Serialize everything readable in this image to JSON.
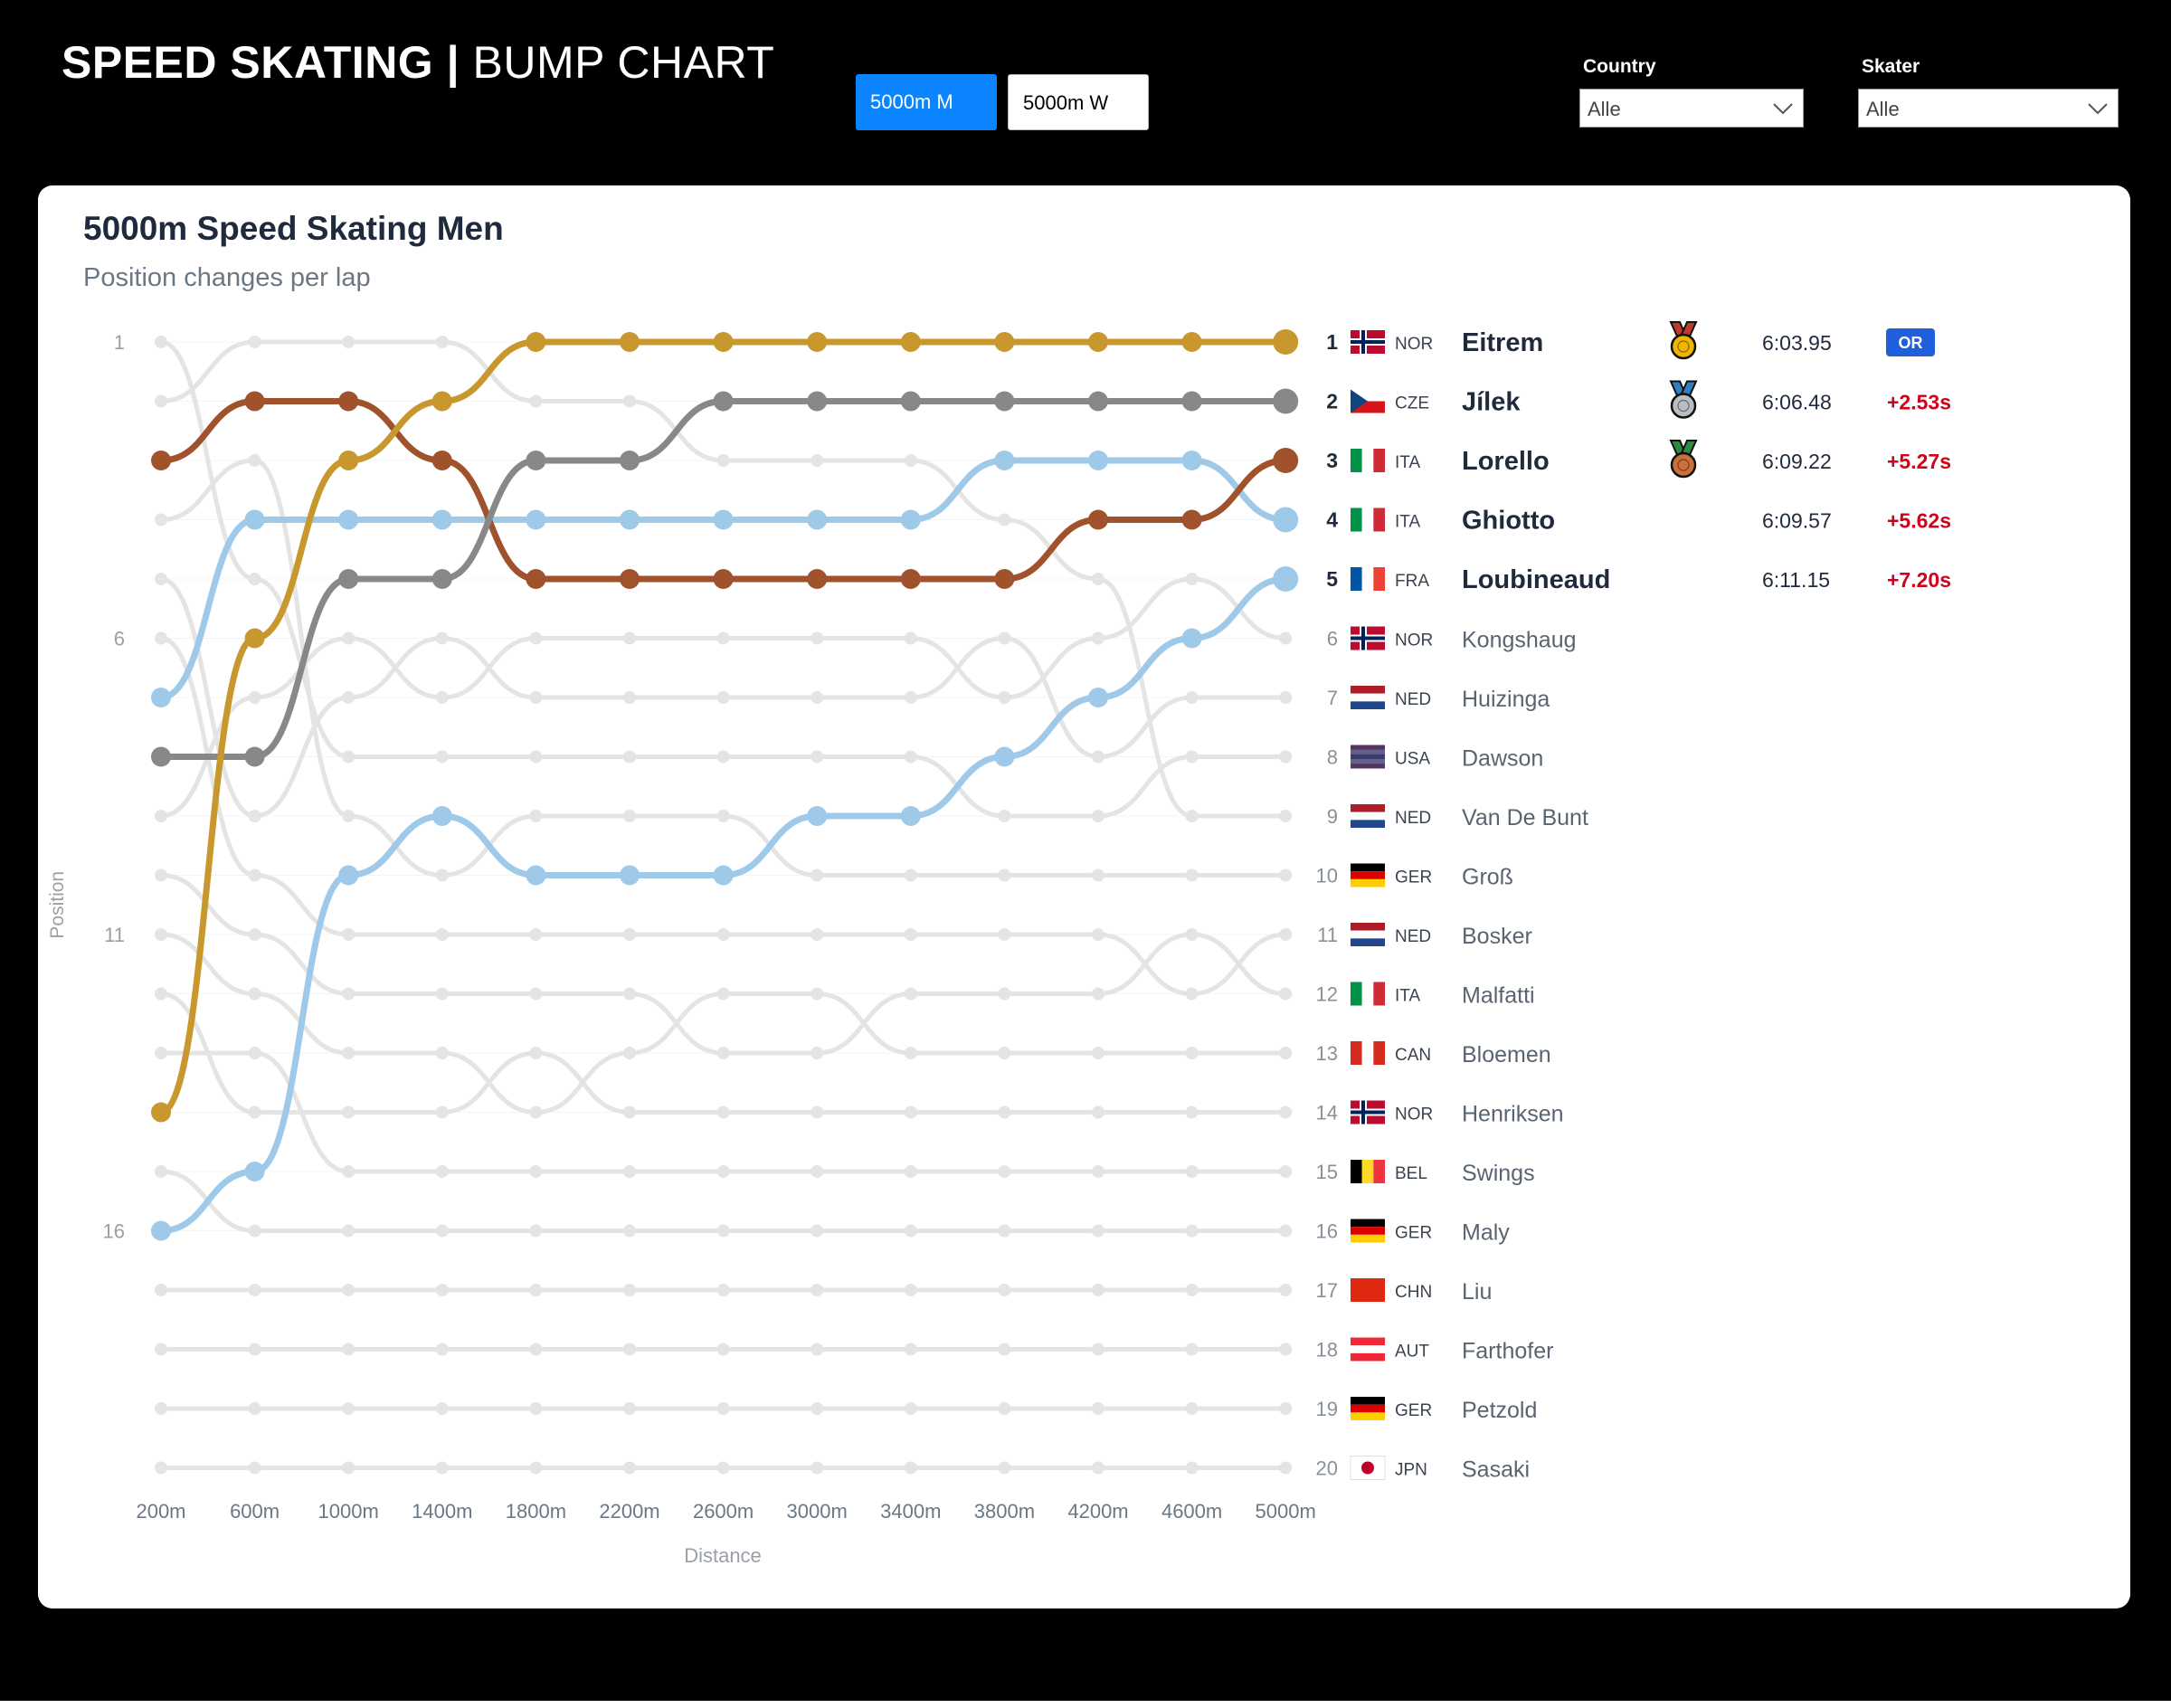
{
  "header": {
    "title_bold": "SPEED SKATING |",
    "title_light": "BUMP CHART",
    "toggle_men": "5000m M",
    "toggle_women": "5000m W",
    "country_label": "Country",
    "country_value": "Alle",
    "skater_label": "Skater",
    "skater_value": "Alle"
  },
  "colors": {
    "gold": "#c8972e",
    "gray": "#888888",
    "bronze": "#a0522d",
    "light_blue": "#9ec9e8",
    "background_lines": "#e4e4e4",
    "gain_red": "#d0021b",
    "record_badge": "#1f5fdc"
  },
  "results": [
    {
      "pos": "1",
      "country": "NOR",
      "name": "Eitrem",
      "time": "6:03.95",
      "gap": "",
      "medal": "gold-medal-icon",
      "badge": "OR",
      "highlight": true
    },
    {
      "pos": "2",
      "country": "CZE",
      "name": "Jílek",
      "time": "6:06.48",
      "gap": "+2.53s",
      "medal": "silver-medal-icon",
      "badge": "",
      "highlight": true
    },
    {
      "pos": "3",
      "country": "ITA",
      "name": "Lorello",
      "time": "6:09.22",
      "gap": "+5.27s",
      "medal": "bronze-medal-icon",
      "badge": "",
      "highlight": true
    },
    {
      "pos": "4",
      "country": "ITA",
      "name": "Ghiotto",
      "time": "6:09.57",
      "gap": "+5.62s",
      "medal": "",
      "badge": "",
      "highlight": true
    },
    {
      "pos": "5",
      "country": "FRA",
      "name": "Loubineaud",
      "time": "6:11.15",
      "gap": "+7.20s",
      "medal": "",
      "badge": "",
      "highlight": true
    },
    {
      "pos": "6",
      "country": "NOR",
      "name": "Kongshaug",
      "highlight": false
    },
    {
      "pos": "7",
      "country": "NED",
      "name": "Huizinga",
      "highlight": false
    },
    {
      "pos": "8",
      "country": "USA",
      "name": "Dawson",
      "highlight": false
    },
    {
      "pos": "9",
      "country": "NED",
      "name": "Van De Bunt",
      "highlight": false
    },
    {
      "pos": "10",
      "country": "GER",
      "name": "Groß",
      "highlight": false
    },
    {
      "pos": "11",
      "country": "NED",
      "name": "Bosker",
      "highlight": false
    },
    {
      "pos": "12",
      "country": "ITA",
      "name": "Malfatti",
      "highlight": false
    },
    {
      "pos": "13",
      "country": "CAN",
      "name": "Bloemen",
      "highlight": false
    },
    {
      "pos": "14",
      "country": "NOR",
      "name": "Henriksen",
      "highlight": false
    },
    {
      "pos": "15",
      "country": "BEL",
      "name": "Swings",
      "highlight": false
    },
    {
      "pos": "16",
      "country": "GER",
      "name": "Maly",
      "highlight": false
    },
    {
      "pos": "17",
      "country": "CHN",
      "name": "Liu",
      "highlight": false
    },
    {
      "pos": "18",
      "country": "AUT",
      "name": "Farthofer",
      "highlight": false
    },
    {
      "pos": "19",
      "country": "GER",
      "name": "Petzold",
      "highlight": false
    },
    {
      "pos": "20",
      "country": "JPN",
      "name": "Sasaki",
      "highlight": false
    }
  ],
  "chart_data": {
    "type": "line",
    "subtype": "bump",
    "title": "5000m Speed Skating Men",
    "subtitle": "Position changes per lap",
    "xlabel": "Distance",
    "ylabel": "Position",
    "x": [
      "200m",
      "600m",
      "1000m",
      "1400m",
      "1800m",
      "2200m",
      "2600m",
      "3000m",
      "3400m",
      "3800m",
      "4200m",
      "4600m",
      "5000m"
    ],
    "y_ticks": [
      1,
      6,
      11,
      16
    ],
    "ylim": [
      1,
      20
    ],
    "y_inverted": true,
    "series": [
      {
        "name": "Eitrem",
        "color": "gold",
        "values": [
          14,
          6,
          3,
          2,
          1,
          1,
          1,
          1,
          1,
          1,
          1,
          1,
          1
        ]
      },
      {
        "name": "Jílek",
        "color": "gray",
        "values": [
          8,
          8,
          5,
          5,
          3,
          3,
          2,
          2,
          2,
          2,
          2,
          2,
          2
        ]
      },
      {
        "name": "Lorello",
        "color": "bronze",
        "values": [
          3,
          2,
          2,
          3,
          5,
          5,
          5,
          5,
          5,
          5,
          4,
          4,
          3
        ]
      },
      {
        "name": "Ghiotto",
        "color": "light_blue",
        "values": [
          7,
          4,
          4,
          4,
          4,
          4,
          4,
          4,
          4,
          3,
          3,
          3,
          4
        ]
      },
      {
        "name": "Loubineaud",
        "color": "light_blue",
        "values": [
          16,
          15,
          10,
          9,
          10,
          10,
          10,
          9,
          9,
          8,
          7,
          6,
          5
        ]
      },
      {
        "name": "Kongshaug",
        "values": [
          9,
          7,
          6,
          7,
          6,
          6,
          6,
          6,
          6,
          7,
          6,
          5,
          6
        ]
      },
      {
        "name": "Huizinga",
        "values": [
          5,
          9,
          7,
          6,
          7,
          7,
          7,
          7,
          7,
          6,
          8,
          7,
          7
        ]
      },
      {
        "name": "Dawson",
        "values": [
          1,
          5,
          8,
          8,
          8,
          8,
          8,
          8,
          8,
          9,
          9,
          8,
          8
        ]
      },
      {
        "name": "Van De Bunt",
        "values": [
          2,
          1,
          1,
          1,
          2,
          2,
          3,
          3,
          3,
          4,
          5,
          9,
          9
        ]
      },
      {
        "name": "Groß",
        "values": [
          4,
          3,
          9,
          10,
          9,
          9,
          9,
          10,
          10,
          10,
          10,
          10,
          10
        ]
      },
      {
        "name": "Bosker",
        "values": [
          6,
          10,
          11,
          11,
          11,
          11,
          11,
          11,
          11,
          11,
          11,
          12,
          11
        ]
      },
      {
        "name": "Malfatti",
        "values": [
          10,
          11,
          12,
          12,
          12,
          12,
          13,
          13,
          12,
          12,
          12,
          11,
          12
        ]
      },
      {
        "name": "Bloemen",
        "values": [
          11,
          12,
          13,
          13,
          14,
          13,
          12,
          12,
          13,
          13,
          13,
          13,
          13
        ]
      },
      {
        "name": "Henriksen",
        "values": [
          12,
          14,
          14,
          14,
          13,
          14,
          14,
          14,
          14,
          14,
          14,
          14,
          14
        ]
      },
      {
        "name": "Swings",
        "values": [
          13,
          13,
          15,
          15,
          15,
          15,
          15,
          15,
          15,
          15,
          15,
          15,
          15
        ]
      },
      {
        "name": "Maly",
        "values": [
          15,
          16,
          16,
          16,
          16,
          16,
          16,
          16,
          16,
          16,
          16,
          16,
          16
        ]
      },
      {
        "name": "Liu",
        "values": [
          17,
          17,
          17,
          17,
          17,
          17,
          17,
          17,
          17,
          17,
          17,
          17,
          17
        ]
      },
      {
        "name": "Farthofer",
        "values": [
          18,
          18,
          18,
          18,
          18,
          18,
          18,
          18,
          18,
          18,
          18,
          18,
          18
        ]
      },
      {
        "name": "Petzold",
        "values": [
          19,
          19,
          19,
          19,
          19,
          19,
          19,
          19,
          19,
          19,
          19,
          19,
          19
        ]
      },
      {
        "name": "Sasaki",
        "values": [
          20,
          20,
          20,
          20,
          20,
          20,
          20,
          20,
          20,
          20,
          20,
          20,
          20
        ]
      }
    ],
    "grid": true,
    "legend": "right"
  }
}
